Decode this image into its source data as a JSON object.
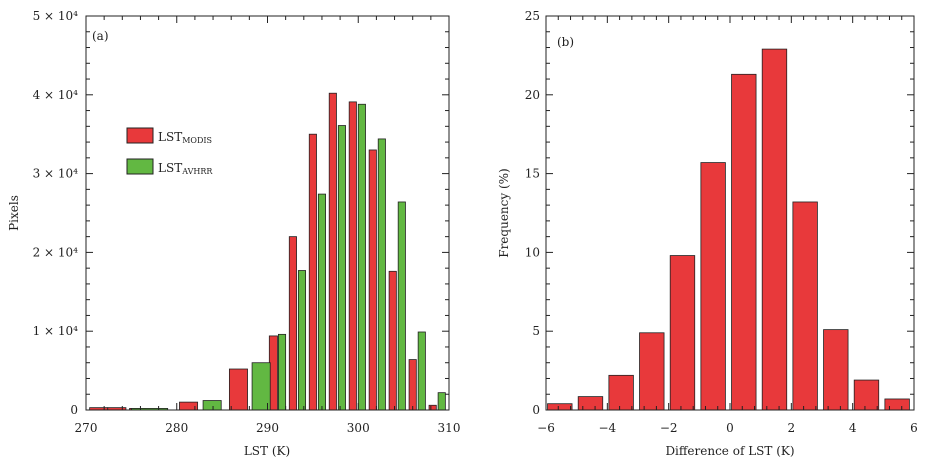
{
  "colors": {
    "modis": "#e8393b",
    "avhrr": "#62b842",
    "stroke": "#222222"
  },
  "chart_data": [
    {
      "id": "a",
      "type": "bar",
      "panel_label": "(a)",
      "xlabel": "LST (K)",
      "ylabel": "Pixels",
      "xlim": [
        270,
        310
      ],
      "ylim": [
        0,
        50000
      ],
      "xticks": [
        "270",
        "280",
        "290",
        "300",
        "310"
      ],
      "yticks": [
        {
          "value": 0,
          "label": "0"
        },
        {
          "value": 10000,
          "label": "1 × 10⁴"
        },
        {
          "value": 20000,
          "label": "2 × 10⁴"
        },
        {
          "value": 30000,
          "label": "3 × 10⁴"
        },
        {
          "value": 40000,
          "label": "4 × 10⁴"
        },
        {
          "value": 50000,
          "label": "5 × 10⁴"
        }
      ],
      "grid": false,
      "legend_position": "upper-left",
      "series": [
        {
          "name": "LSTMODIS",
          "name_parts": {
            "base": "LST",
            "sub": "MODIS"
          },
          "color_key": "modis",
          "bins": [
            {
              "x0": 270.4,
              "x1": 272.4,
              "y": 300
            },
            {
              "x0": 272.4,
              "x1": 274.4,
              "y": 300
            },
            {
              "x0": 274.8,
              "x1": 276.6,
              "y": 200
            },
            {
              "x0": 280.3,
              "x1": 282.3,
              "y": 1000
            },
            {
              "x0": 285.8,
              "x1": 287.8,
              "y": 5200
            },
            {
              "x0": 290.2,
              "x1": 291.1,
              "y": 9400
            },
            {
              "x0": 292.4,
              "x1": 293.2,
              "y": 22000
            },
            {
              "x0": 294.6,
              "x1": 295.4,
              "y": 35000
            },
            {
              "x0": 296.8,
              "x1": 297.6,
              "y": 40200
            },
            {
              "x0": 299.0,
              "x1": 299.8,
              "y": 39100
            },
            {
              "x0": 301.2,
              "x1": 302.0,
              "y": 33000
            },
            {
              "x0": 303.4,
              "x1": 304.2,
              "y": 17600
            },
            {
              "x0": 305.6,
              "x1": 306.4,
              "y": 6400
            },
            {
              "x0": 307.8,
              "x1": 308.6,
              "y": 600
            }
          ]
        },
        {
          "name": "LSTAVHRR",
          "name_parts": {
            "base": "LST",
            "sub": "AVHRR"
          },
          "color_key": "avhrr",
          "bins": [
            {
              "x0": 275.0,
              "x1": 279.0,
              "y": 200
            },
            {
              "x0": 282.9,
              "x1": 284.9,
              "y": 1200
            },
            {
              "x0": 288.3,
              "x1": 290.3,
              "y": 6000
            },
            {
              "x0": 291.2,
              "x1": 292.0,
              "y": 9600
            },
            {
              "x0": 293.4,
              "x1": 294.2,
              "y": 17700
            },
            {
              "x0": 295.6,
              "x1": 296.4,
              "y": 27400
            },
            {
              "x0": 297.8,
              "x1": 298.6,
              "y": 36100
            },
            {
              "x0": 300.0,
              "x1": 300.8,
              "y": 38800
            },
            {
              "x0": 302.2,
              "x1": 303.0,
              "y": 34400
            },
            {
              "x0": 304.4,
              "x1": 305.2,
              "y": 26400
            },
            {
              "x0": 306.6,
              "x1": 307.4,
              "y": 9900
            },
            {
              "x0": 308.8,
              "x1": 309.6,
              "y": 2200
            }
          ]
        }
      ]
    },
    {
      "id": "b",
      "type": "bar",
      "panel_label": "(b)",
      "xlabel": "Difference of LST (K)",
      "ylabel": "Frequency (%)",
      "xlim": [
        -6,
        6
      ],
      "ylim": [
        0,
        25
      ],
      "xticks": [
        "−6",
        "−4",
        "−2",
        "0",
        "2",
        "4",
        "6"
      ],
      "yticks": [
        {
          "value": 0,
          "label": "0"
        },
        {
          "value": 5,
          "label": "5"
        },
        {
          "value": 10,
          "label": "10"
        },
        {
          "value": 15,
          "label": "15"
        },
        {
          "value": 20,
          "label": "20"
        },
        {
          "value": 25,
          "label": "25"
        }
      ],
      "grid": false,
      "series": [
        {
          "color_key": "modis",
          "bins": [
            {
              "x0": -5.95,
              "x1": -5.15,
              "y": 0.4
            },
            {
              "x0": -4.95,
              "x1": -4.15,
              "y": 0.85
            },
            {
              "x0": -3.95,
              "x1": -3.15,
              "y": 2.2
            },
            {
              "x0": -2.95,
              "x1": -2.15,
              "y": 4.9
            },
            {
              "x0": -1.95,
              "x1": -1.15,
              "y": 9.8
            },
            {
              "x0": -0.95,
              "x1": -0.15,
              "y": 15.7
            },
            {
              "x0": 0.05,
              "x1": 0.85,
              "y": 21.3
            },
            {
              "x0": 1.05,
              "x1": 1.85,
              "y": 22.9
            },
            {
              "x0": 2.05,
              "x1": 2.85,
              "y": 13.2
            },
            {
              "x0": 3.05,
              "x1": 3.85,
              "y": 5.1
            },
            {
              "x0": 4.05,
              "x1": 4.85,
              "y": 1.9
            },
            {
              "x0": 5.05,
              "x1": 5.85,
              "y": 0.7
            }
          ]
        }
      ]
    }
  ]
}
